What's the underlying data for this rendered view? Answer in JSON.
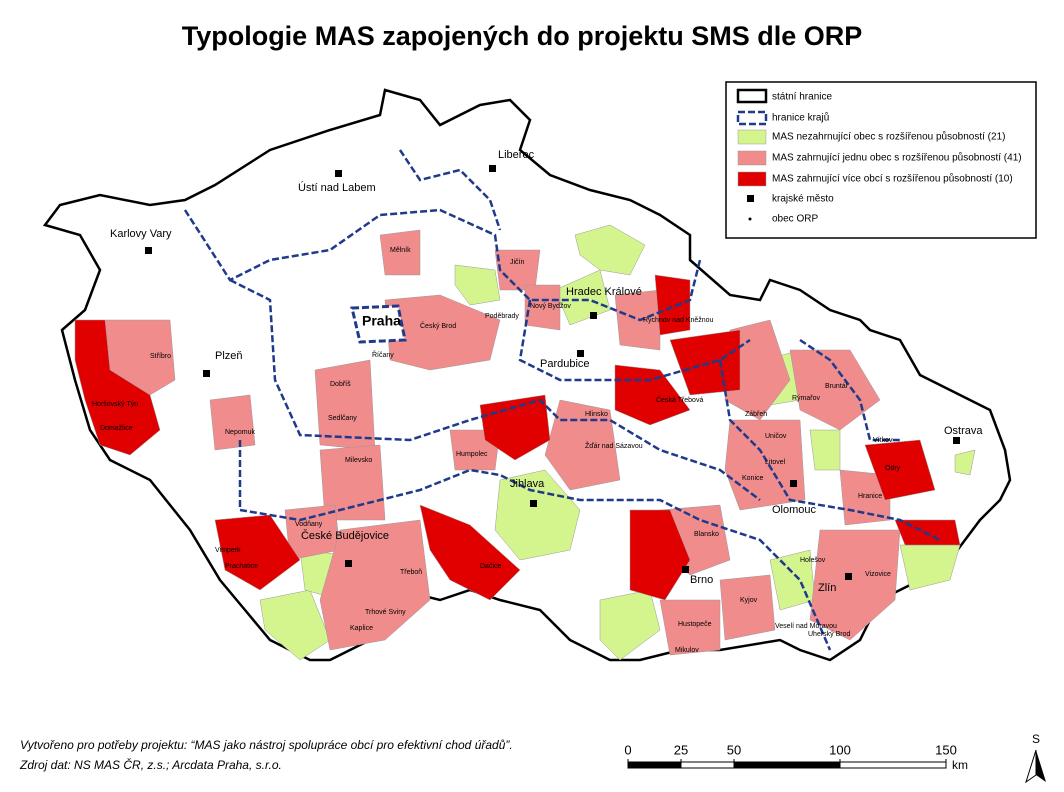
{
  "header": {
    "title": "Typologie MAS zapojených do projektu SMS dle ORP"
  },
  "legend": [
    "státní hranice",
    "hranice krajů",
    "MAS nezahrnující obec s rozšířenou působností (21)",
    "MAS zahrnující jednu obec s rozšířenou působností (41)",
    "MAS zahrnující více obcí s rozšířenou působností (10)",
    "krajské město",
    "obec ORP"
  ],
  "map": {
    "regional_cities": [
      "Ústí nad Labem",
      "Liberec",
      "Karlovy Vary",
      "Plzeň",
      "Praha",
      "Hradec Králové",
      "Pardubice",
      "Jihlava",
      "České Budějovice",
      "Brno",
      "Zlín",
      "Olomouc",
      "Ostrava"
    ],
    "orp": [
      "Stříbro",
      "Horšovský Týn",
      "Domažlice",
      "Nepomuk",
      "Dobříš",
      "Sedlčany",
      "Milevsko",
      "Vodňany",
      "Vimperk",
      "Prachatice",
      "Třeboň",
      "Kaplice",
      "Trhové Sviny",
      "Mělník",
      "Jičín",
      "Český Brod",
      "Říčany",
      "Poděbrady",
      "Nový Bydžov",
      "Humpolec",
      "Dačice",
      "Hlinsko",
      "Žďár nad Sázavou",
      "Blansko",
      "Hustopeče",
      "Mikulov",
      "Kyjov",
      "Veselí nad Moravou",
      "Uherský Brod",
      "Holešov",
      "Vizovice",
      "Hranice",
      "Konice",
      "Litovel",
      "Uničov",
      "Zábřeh",
      "Rýmařov",
      "Bruntál",
      "Vítkov",
      "Odry",
      "Česká Třebová",
      "Rychnov nad Kněžnou"
    ]
  },
  "footer": {
    "created": "Vytvořeno pro potřeby projektu: “MAS jako nástroj spolupráce obcí pro efektivní chod úřadů”.",
    "source": "Zdroj dat: NS MAS ČR, z.s.; Arcdata Praha, s.r.o."
  },
  "scale_bar": {
    "ticks": [
      0,
      25,
      50,
      100,
      150
    ],
    "unit": "km"
  },
  "north_arrow": "S"
}
